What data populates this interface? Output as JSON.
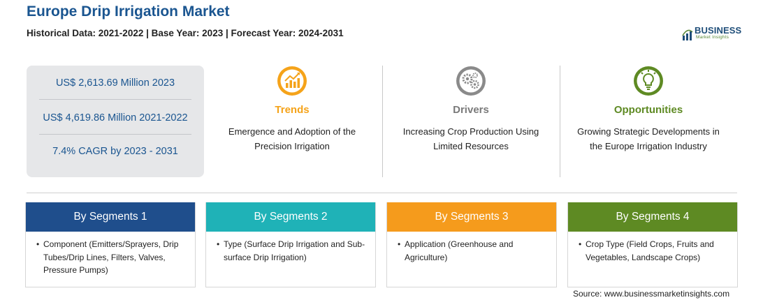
{
  "header": {
    "title": "Europe Drip Irrigation Market",
    "subtitle": "Historical Data: 2021-2022 | Base Year: 2023 | Forecast Year: 2024-2031"
  },
  "logo": {
    "name": "BUSINESS",
    "tagline": "Market Insights"
  },
  "stats": [
    "US$ 2,613.69 Million 2023",
    "US$ 4,619.86 Million 2021-2022",
    "7.4% CAGR by 2023 - 2031"
  ],
  "columns": [
    {
      "label": "Trends",
      "text_lines": [
        "Emergence and Adoption of the",
        "Precision Irrigation"
      ],
      "color": "#f5a31a",
      "icon": "trend-chart-icon"
    },
    {
      "label": "Drivers",
      "text_lines": [
        "Increasing Crop Production Using",
        "Limited Resources"
      ],
      "color": "#7a7a7a",
      "icon": "gears-icon"
    },
    {
      "label": "Opportunities",
      "text_lines": [
        "Growing Strategic Developments in",
        "the Europe Irrigation Industry"
      ],
      "color": "#5e8a23",
      "icon": "lightbulb-icon"
    }
  ],
  "segments": [
    {
      "title": "By Segments 1",
      "color": "#1f4e8c",
      "bullet": "•",
      "lines": [
        "Component (Emitters/Sprayers, Drip",
        "Tubes/Drip Lines, Filters, Valves,",
        "Pressure Pumps)"
      ]
    },
    {
      "title": "By Segments 2",
      "color": "#1fb2b7",
      "bullet": "•",
      "lines": [
        "Type (Surface Drip Irrigation and Sub-",
        "surface Drip Irrigation)"
      ]
    },
    {
      "title": "By Segments 3",
      "color": "#f59b1c",
      "bullet": "•",
      "lines": [
        "Application (Greenhouse and",
        "Agriculture)"
      ]
    },
    {
      "title": "By Segments 4",
      "color": "#5e8a23",
      "bullet": "•",
      "lines": [
        "Crop Type (Field Crops, Fruits and",
        "Vegetables, Landscape Crops)"
      ]
    }
  ],
  "source": "Source: www.businessmarketinsights.com"
}
